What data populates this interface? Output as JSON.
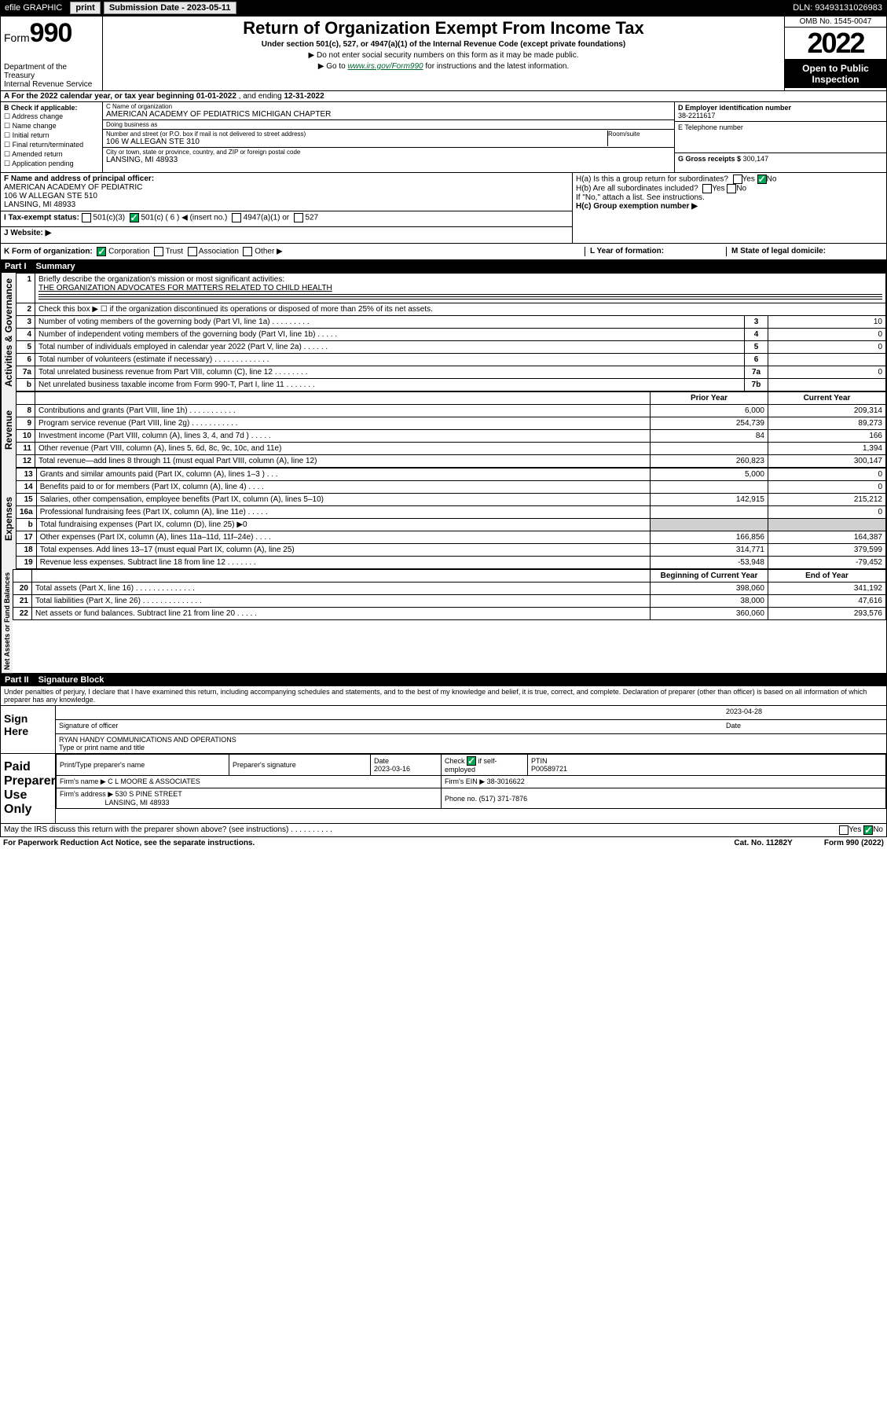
{
  "topbar": {
    "efile_label": "efile GRAPHIC",
    "print_btn": "print",
    "sub_date_label": "Submission Date - 2023-05-11",
    "dln_label": "DLN: 93493131026983"
  },
  "header": {
    "form_word": "Form",
    "form_num": "990",
    "dept": "Department of the Treasury",
    "irs": "Internal Revenue Service",
    "title": "Return of Organization Exempt From Income Tax",
    "subtitle": "Under section 501(c), 527, or 4947(a)(1) of the Internal Revenue Code (except private foundations)",
    "note1": "▶ Do not enter social security numbers on this form as it may be made public.",
    "note2_pre": "▶ Go to ",
    "note2_link": "www.irs.gov/Form990",
    "note2_post": " for instructions and the latest information.",
    "omb": "OMB No. 1545-0047",
    "year": "2022",
    "inspect": "Open to Public Inspection"
  },
  "line_a": {
    "text_pre": "A For the 2022 calendar year, or tax year beginning ",
    "begin": "01-01-2022",
    "mid": " , and ending ",
    "end": "12-31-2022"
  },
  "section_b": {
    "label": "B Check if applicable:",
    "opts": [
      "Address change",
      "Name change",
      "Initial return",
      "Final return/terminated",
      "Amended return",
      "Application pending"
    ]
  },
  "section_c": {
    "name_lbl": "C Name of organization",
    "name_val": "AMERICAN ACADEMY OF PEDIATRICS MICHIGAN CHAPTER",
    "dba_lbl": "Doing business as",
    "street_lbl": "Number and street (or P.O. box if mail is not delivered to street address)",
    "room_lbl": "Room/suite",
    "street_val": "106 W ALLEGAN STE 310",
    "city_lbl": "City or town, state or province, country, and ZIP or foreign postal code",
    "city_val": "LANSING, MI  48933"
  },
  "section_d": {
    "ein_lbl": "D Employer identification number",
    "ein_val": "38-2211617",
    "phone_lbl": "E Telephone number",
    "gross_lbl": "G Gross receipts $",
    "gross_val": "300,147"
  },
  "section_f": {
    "lbl": "F Name and address of principal officer:",
    "line1": "AMERICAN ACADEMY OF PEDIATRIC",
    "line2": "106 W ALLEGAN STE 510",
    "line3": "LANSING, MI  48933"
  },
  "section_h": {
    "ha_lbl": "H(a)  Is this a group return for subordinates?",
    "ha_yes": "Yes",
    "ha_no": "No",
    "hb_lbl": "H(b)  Are all subordinates included?",
    "hb_yes": "Yes",
    "hb_no": "No",
    "hb_note": "If \"No,\" attach a list. See instructions.",
    "hc_lbl": "H(c)  Group exemption number ▶"
  },
  "section_i": {
    "lbl": "I     Tax-exempt status:",
    "opt1": "501(c)(3)",
    "opt2_pre": "501(c) ( ",
    "opt2_num": "6",
    "opt2_post": " ) ◀ (insert no.)",
    "opt3": "4947(a)(1) or",
    "opt4": "527"
  },
  "section_j": {
    "lbl": "J     Website: ▶"
  },
  "section_k": {
    "lbl": "K Form of organization:",
    "opts": [
      "Corporation",
      "Trust",
      "Association",
      "Other ▶"
    ],
    "l_lbl": "L Year of formation:",
    "m_lbl": "M State of legal domicile:"
  },
  "part1": {
    "header_num": "Part I",
    "header_title": "Summary",
    "q1_lbl": "Briefly describe the organization's mission or most significant activities:",
    "q1_val": "THE ORGANIZATION ADVOCATES FOR MATTERS RELATED TO CHILD HEALTH",
    "q2_lbl": "Check this box ▶ ☐  if the organization discontinued its operations or disposed of more than 25% of its net assets.",
    "gov_label": "Activities & Governance",
    "rev_label": "Revenue",
    "exp_label": "Expenses",
    "net_label": "Net Assets or Fund Balances",
    "gov_rows": [
      {
        "n": "3",
        "d": "Number of voting members of the governing body (Part VI, line 1a)  .   .   .   .   .   .   .   .   .",
        "b": "3",
        "v": "10"
      },
      {
        "n": "4",
        "d": "Number of independent voting members of the governing body (Part VI, line 1b)  .   .   .   .   .",
        "b": "4",
        "v": "0"
      },
      {
        "n": "5",
        "d": "Total number of individuals employed in calendar year 2022 (Part V, line 2a)  .   .   .   .   .   .",
        "b": "5",
        "v": "0"
      },
      {
        "n": "6",
        "d": "Total number of volunteers (estimate if necessary)  .   .   .   .   .   .   .   .   .   .   .   .   .",
        "b": "6",
        "v": ""
      },
      {
        "n": "7a",
        "d": "Total unrelated business revenue from Part VIII, column (C), line 12  .   .   .   .   .   .   .   .",
        "b": "7a",
        "v": "0"
      },
      {
        "n": "b",
        "d": "Net unrelated business taxable income from Form 990-T, Part I, line 11  .   .   .   .   .   .   .",
        "b": "7b",
        "v": ""
      }
    ],
    "col_prior": "Prior Year",
    "col_current": "Current Year",
    "rev_rows": [
      {
        "n": "8",
        "d": "Contributions and grants (Part VIII, line 1h)  .   .   .   .   .   .   .   .   .   .   .",
        "p": "6,000",
        "c": "209,314"
      },
      {
        "n": "9",
        "d": "Program service revenue (Part VIII, line 2g)  .   .   .   .   .   .   .   .   .   .   .",
        "p": "254,739",
        "c": "89,273"
      },
      {
        "n": "10",
        "d": "Investment income (Part VIII, column (A), lines 3, 4, and 7d )   .   .   .   .   .",
        "p": "84",
        "c": "166"
      },
      {
        "n": "11",
        "d": "Other revenue (Part VIII, column (A), lines 5, 6d, 8c, 9c, 10c, and 11e)",
        "p": "",
        "c": "1,394"
      },
      {
        "n": "12",
        "d": "Total revenue—add lines 8 through 11 (must equal Part VIII, column (A), line 12)",
        "p": "260,823",
        "c": "300,147"
      }
    ],
    "exp_rows": [
      {
        "n": "13",
        "d": "Grants and similar amounts paid (Part IX, column (A), lines 1–3 )   .   .   .",
        "p": "5,000",
        "c": "0"
      },
      {
        "n": "14",
        "d": "Benefits paid to or for members (Part IX, column (A), line 4)   .   .   .   .",
        "p": "",
        "c": "0"
      },
      {
        "n": "15",
        "d": "Salaries, other compensation, employee benefits (Part IX, column (A), lines 5–10)",
        "p": "142,915",
        "c": "215,212"
      },
      {
        "n": "16a",
        "d": "Professional fundraising fees (Part IX, column (A), line 11e)  .   .   .   .   .",
        "p": "",
        "c": "0"
      },
      {
        "n": "b",
        "d": "Total fundraising expenses (Part IX, column (D), line 25) ▶0",
        "p": "GRAY",
        "c": "GRAY"
      },
      {
        "n": "17",
        "d": "Other expenses (Part IX, column (A), lines 11a–11d, 11f–24e)  .   .   .   .",
        "p": "166,856",
        "c": "164,387"
      },
      {
        "n": "18",
        "d": "Total expenses. Add lines 13–17 (must equal Part IX, column (A), line 25)",
        "p": "314,771",
        "c": "379,599"
      },
      {
        "n": "19",
        "d": "Revenue less expenses. Subtract line 18 from line 12  .   .   .   .   .   .   .",
        "p": "-53,948",
        "c": "-79,452"
      }
    ],
    "col_begin": "Beginning of Current Year",
    "col_end": "End of Year",
    "net_rows": [
      {
        "n": "20",
        "d": "Total assets (Part X, line 16)   .   .   .   .   .   .   .   .   .   .   .   .   .   .",
        "p": "398,060",
        "c": "341,192"
      },
      {
        "n": "21",
        "d": "Total liabilities (Part X, line 26)   .   .   .   .   .   .   .   .   .   .   .   .   .   .",
        "p": "38,000",
        "c": "47,616"
      },
      {
        "n": "22",
        "d": "Net assets or fund balances. Subtract line 21 from line 20  .   .   .   .   .",
        "p": "360,060",
        "c": "293,576"
      }
    ]
  },
  "part2": {
    "header_num": "Part II",
    "header_title": "Signature Block",
    "declare": "Under penalties of perjury, I declare that I have examined this return, including accompanying schedules and statements, and to the best of my knowledge and belief, it is true, correct, and complete. Declaration of preparer (other than officer) is based on all information of which preparer has any knowledge.",
    "sign_here": "Sign Here",
    "sig_officer_lbl": "Signature of officer",
    "sig_date": "2023-04-28",
    "sig_date_lbl": "Date",
    "officer_name": "RYAN HANDY COMMUNICATIONS AND OPERATIONS",
    "officer_title_lbl": "Type or print name and title",
    "paid_prep": "Paid Preparer Use Only",
    "prep_name_lbl": "Print/Type preparer's name",
    "prep_sig_lbl": "Preparer's signature",
    "prep_date_lbl": "Date",
    "prep_date": "2023-03-16",
    "prep_check_lbl": "Check ☑ if self-employed",
    "ptin_lbl": "PTIN",
    "ptin": "P00589721",
    "firm_name_lbl": "Firm's name    ▶",
    "firm_name": "C L MOORE & ASSOCIATES",
    "firm_ein_lbl": "Firm's EIN ▶",
    "firm_ein": "38-3016622",
    "firm_addr_lbl": "Firm's address ▶",
    "firm_addr1": "530 S PINE STREET",
    "firm_addr2": "LANSING, MI  48933",
    "firm_phone_lbl": "Phone no.",
    "firm_phone": "(517) 371-7876",
    "discuss_lbl": "May the IRS discuss this return with the preparer shown above? (see instructions)   .   .   .   .   .   .   .   .   .   .",
    "discuss_yes": "Yes",
    "discuss_no": "No"
  },
  "footer": {
    "pra": "For Paperwork Reduction Act Notice, see the separate instructions.",
    "cat": "Cat. No. 11282Y",
    "form": "Form 990 (2022)"
  },
  "colors": {
    "green": "#00a651",
    "link": "#006633"
  }
}
